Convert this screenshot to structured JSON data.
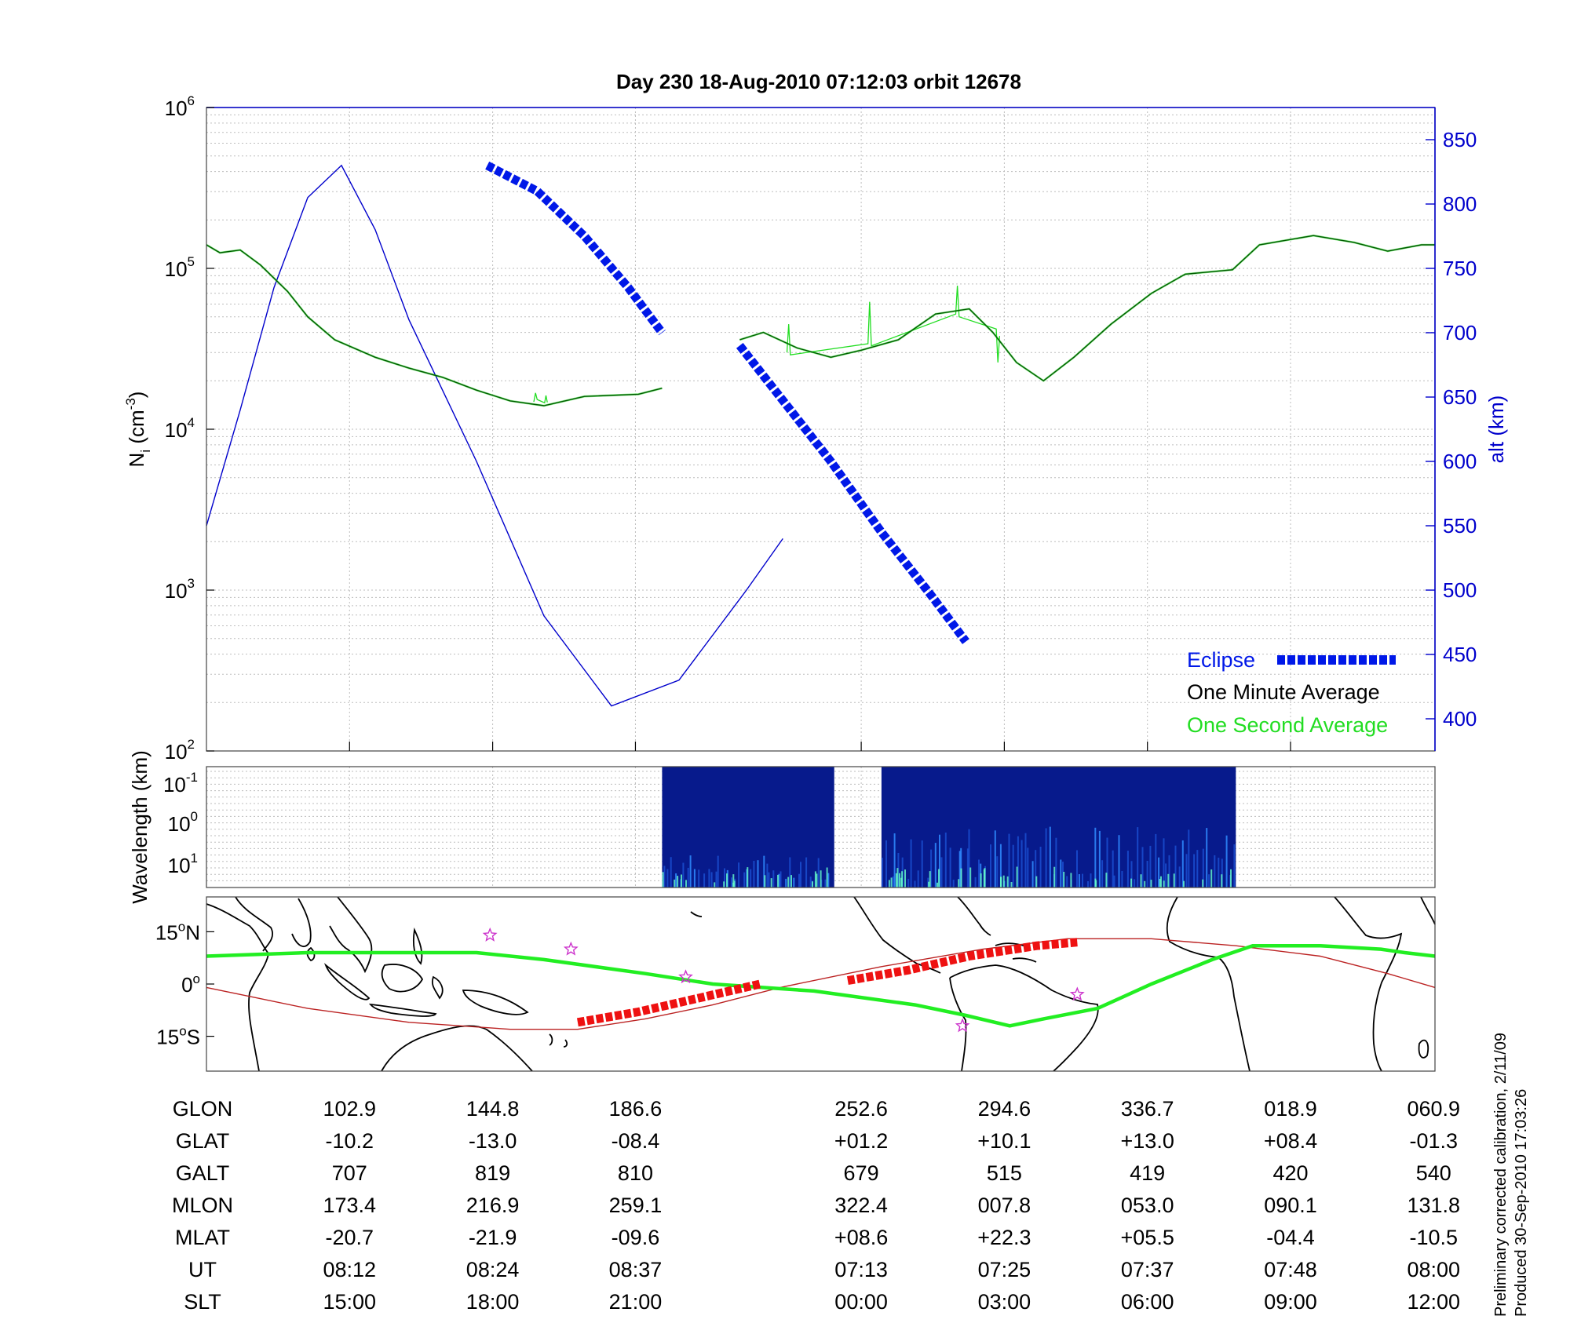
{
  "title": "Day 230  18-Aug-2010 07:12:03   orbit 12678",
  "side_note": [
    "Preliminary corrected calibration, 2/11/09",
    "Produced 30-Sep-2010 17:03:26"
  ],
  "colors": {
    "altitude": "#0000cc",
    "eclipse": "#0018e8",
    "minute_avg": "#005a00",
    "second_avg": "#22dd22",
    "track": "#22ee22",
    "map_eclipse": "#ee1111",
    "dip_equator": "#bb2222",
    "stars": "#cc33cc",
    "spectrogram_bg": "#071a8c",
    "spectrogram_hot": "#66ffcc"
  },
  "chart_data": [
    {
      "id": "density",
      "type": "line",
      "ylabel_main": "N",
      "ylabel_sub": "i",
      "ylabel_rest": " (cm",
      "ylabel_exp": "-3",
      "ylabel_end": ")",
      "yscale": "log",
      "ylim": [
        100,
        1000000
      ],
      "y_ticks": [
        {
          "base": "10",
          "exp": "2",
          "value": 100
        },
        {
          "base": "10",
          "exp": "3",
          "value": 1000
        },
        {
          "base": "10",
          "exp": "4",
          "value": 10000
        },
        {
          "base": "10",
          "exp": "5",
          "value": 100000
        },
        {
          "base": "10",
          "exp": "6",
          "value": 1000000
        }
      ],
      "y2label": "alt (km)",
      "y2lim": [
        375,
        875
      ],
      "y2_ticks": [
        "400",
        "450",
        "500",
        "550",
        "600",
        "650",
        "700",
        "750",
        "800",
        "850"
      ],
      "grid": true,
      "legend_position": "bottom-right",
      "legend": [
        {
          "key": "eclipse",
          "label": "Eclipse"
        },
        {
          "key": "minute",
          "label": "One Minute Average"
        },
        {
          "key": "second",
          "label": "One Second Average"
        }
      ],
      "altitude_km": [
        [
          0,
          550
        ],
        [
          0.1,
          640
        ],
        [
          0.2,
          735
        ],
        [
          0.3,
          805
        ],
        [
          0.4,
          830
        ],
        [
          0.5,
          780
        ],
        [
          0.6,
          710
        ],
        [
          0.8,
          600
        ],
        [
          1.0,
          480
        ],
        [
          1.2,
          410
        ],
        [
          1.4,
          430
        ],
        [
          1.6,
          500
        ],
        [
          1.708,
          540
        ]
      ],
      "density_minute_segment_1": [
        [
          0,
          140000
        ],
        [
          0.04,
          125000
        ],
        [
          0.1,
          130000
        ],
        [
          0.16,
          105000
        ],
        [
          0.24,
          72000
        ],
        [
          0.3,
          50000
        ],
        [
          0.38,
          36000
        ],
        [
          0.5,
          28000
        ],
        [
          0.6,
          24000
        ],
        [
          0.7,
          21000
        ],
        [
          0.8,
          17500
        ],
        [
          0.9,
          15000
        ],
        [
          1.0,
          14000
        ],
        [
          1.12,
          16000
        ],
        [
          1.28,
          16500
        ],
        [
          1.35,
          18000
        ]
      ],
      "density_minute_segment_2": [
        [
          1.58,
          36000
        ],
        [
          1.65,
          40000
        ],
        [
          1.75,
          32000
        ],
        [
          1.85,
          28000
        ],
        [
          1.94,
          31000
        ],
        [
          2.05,
          36000
        ],
        [
          2.16,
          52000
        ],
        [
          2.26,
          56000
        ],
        [
          2.33,
          40000
        ],
        [
          2.4,
          26000
        ],
        [
          2.48,
          20000
        ],
        [
          2.57,
          28000
        ],
        [
          2.68,
          45000
        ],
        [
          2.8,
          70000
        ],
        [
          2.9,
          92000
        ],
        [
          3.04,
          98000
        ],
        [
          3.12,
          140000
        ],
        [
          3.28,
          160000
        ],
        [
          3.4,
          145000
        ],
        [
          3.5,
          128000
        ],
        [
          3.6,
          140000
        ],
        [
          3.64,
          140000
        ]
      ],
      "density_second_spikes": [
        [
          0.97,
          14800
        ],
        [
          0.975,
          16800
        ],
        [
          0.98,
          15300
        ],
        [
          1.002,
          14600
        ],
        [
          1.006,
          16200
        ],
        [
          1.01,
          14700
        ],
        [
          1.72,
          30000
        ],
        [
          1.725,
          45000
        ],
        [
          1.73,
          29000
        ],
        [
          1.96,
          34000
        ],
        [
          1.965,
          62000
        ],
        [
          1.97,
          33000
        ],
        [
          2.22,
          52000
        ],
        [
          2.225,
          78000
        ],
        [
          2.23,
          50000
        ],
        [
          2.34,
          42000
        ],
        [
          2.345,
          26000
        ],
        [
          2.35,
          38000
        ]
      ],
      "eclipse_segment_1": [
        [
          0.832,
          830
        ],
        [
          0.98,
          810
        ],
        [
          1.12,
          775
        ],
        [
          1.25,
          735
        ],
        [
          1.35,
          700
        ]
      ],
      "eclipse_segment_2": [
        [
          1.58,
          690
        ],
        [
          1.7,
          650
        ],
        [
          1.85,
          600
        ],
        [
          2.0,
          545
        ],
        [
          2.15,
          495
        ],
        [
          2.25,
          460
        ]
      ]
    },
    {
      "id": "spectrogram",
      "type": "heatmap",
      "ylabel": "Wavelength (km)",
      "yscale": "log",
      "y_ticks": [
        {
          "base": "10",
          "exp": "-1"
        },
        {
          "base": "10",
          "exp": "0"
        },
        {
          "base": "10",
          "exp": "1"
        }
      ],
      "x_ranges": [
        [
          1.35,
          1.86
        ],
        [
          2.0,
          3.05
        ]
      ]
    },
    {
      "id": "map",
      "type": "line",
      "y_ticks": [
        {
          "value": 15,
          "label": "15",
          "sup": "o",
          "suffix": "N"
        },
        {
          "value": 0,
          "label": "0",
          "sup": "o",
          "suffix": ""
        },
        {
          "value": -15,
          "label": "15",
          "sup": "o",
          "suffix": "S"
        }
      ],
      "ylim": [
        -25,
        25
      ],
      "track_lat": [
        [
          0,
          8
        ],
        [
          0.3,
          9
        ],
        [
          0.8,
          9
        ],
        [
          1.0,
          7
        ],
        [
          1.3,
          3
        ],
        [
          1.5,
          0
        ],
        [
          1.8,
          -2
        ],
        [
          2.1,
          -6
        ],
        [
          2.25,
          -9
        ],
        [
          2.38,
          -12
        ],
        [
          2.48,
          -10
        ],
        [
          2.64,
          -7
        ],
        [
          2.8,
          0
        ],
        [
          2.98,
          7
        ],
        [
          3.1,
          11
        ],
        [
          3.3,
          11
        ],
        [
          3.48,
          10
        ],
        [
          3.55,
          9
        ],
        [
          3.64,
          8
        ]
      ],
      "dip_equator_lat": [
        [
          0,
          -1
        ],
        [
          0.3,
          -7
        ],
        [
          0.6,
          -11
        ],
        [
          0.9,
          -13
        ],
        [
          1.1,
          -13
        ],
        [
          1.3,
          -10
        ],
        [
          1.5,
          -6
        ],
        [
          1.7,
          -1
        ],
        [
          2.0,
          5
        ],
        [
          2.3,
          10
        ],
        [
          2.55,
          13
        ],
        [
          2.8,
          13
        ],
        [
          3.05,
          11
        ],
        [
          3.3,
          8
        ],
        [
          3.5,
          3
        ],
        [
          3.64,
          -1
        ]
      ],
      "eclipse_map_segment_1": [
        [
          1.1,
          -11
        ],
        [
          1.28,
          -8
        ],
        [
          1.46,
          -4
        ],
        [
          1.64,
          0
        ]
      ],
      "eclipse_map_segment_2": [
        [
          1.9,
          1
        ],
        [
          2.08,
          4
        ],
        [
          2.26,
          8
        ],
        [
          2.46,
          11
        ],
        [
          2.58,
          12
        ]
      ],
      "stars": [
        [
          0.84,
          14
        ],
        [
          1.08,
          10
        ],
        [
          1.42,
          2
        ],
        [
          2.24,
          -12
        ],
        [
          2.58,
          -3
        ]
      ]
    }
  ],
  "ephemeris": {
    "labels": [
      "GLON",
      "GLAT",
      "GALT",
      "MLON",
      "MLAT",
      "UT",
      "SLT"
    ],
    "columns": [
      {
        "x": 0.424,
        "values": [
          "102.9",
          "-10.2",
          "707",
          "173.4",
          "-20.7",
          "08:12",
          "15:00"
        ]
      },
      {
        "x": 0.848,
        "values": [
          "144.8",
          "-13.0",
          "819",
          "216.9",
          "-21.9",
          "08:24",
          "18:00"
        ]
      },
      {
        "x": 1.271,
        "values": [
          "186.6",
          "-08.4",
          "810",
          "259.1",
          "-09.6",
          "08:37",
          "21:00"
        ]
      },
      {
        "x": 1.94,
        "values": [
          "252.6",
          "+01.2",
          "679",
          "322.4",
          "+08.6",
          "07:13",
          "00:00"
        ]
      },
      {
        "x": 2.364,
        "values": [
          "294.6",
          "+10.1",
          "515",
          "007.8",
          "+22.3",
          "07:25",
          "03:00"
        ]
      },
      {
        "x": 2.788,
        "values": [
          "336.7",
          "+13.0",
          "419",
          "053.0",
          "+05.5",
          "07:37",
          "06:00"
        ]
      },
      {
        "x": 3.212,
        "values": [
          "018.9",
          "+08.4",
          "420",
          "090.1",
          "-04.4",
          "07:48",
          "09:00"
        ]
      },
      {
        "x": 3.636,
        "values": [
          "060.9",
          "-01.3",
          "540",
          "131.8",
          "-10.5",
          "08:00",
          "12:00"
        ]
      }
    ]
  }
}
